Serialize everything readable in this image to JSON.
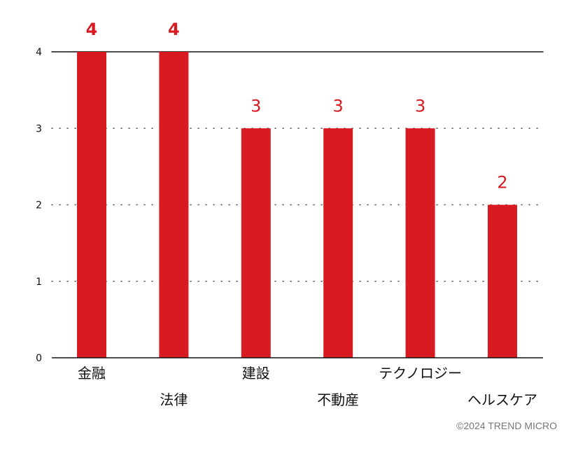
{
  "chart_data": {
    "type": "bar",
    "categories": [
      "金融",
      "法律",
      "建設",
      "不動産",
      "テクノロジー",
      "ヘルスケア"
    ],
    "values": [
      4,
      4,
      3,
      3,
      3,
      2
    ],
    "data_labels": [
      "4",
      "4",
      "3",
      "3",
      "3",
      "2"
    ],
    "bold_labels": [
      true,
      true,
      false,
      false,
      false,
      false
    ],
    "yticks": [
      0,
      1,
      2,
      3,
      4
    ],
    "ylim": [
      0,
      4
    ],
    "bar_color": "#d81a21",
    "label_color": "#d81a21",
    "grid": "dotted",
    "title": "",
    "xlabel": "",
    "ylabel": ""
  },
  "credit": "©2024 TREND MICRO"
}
